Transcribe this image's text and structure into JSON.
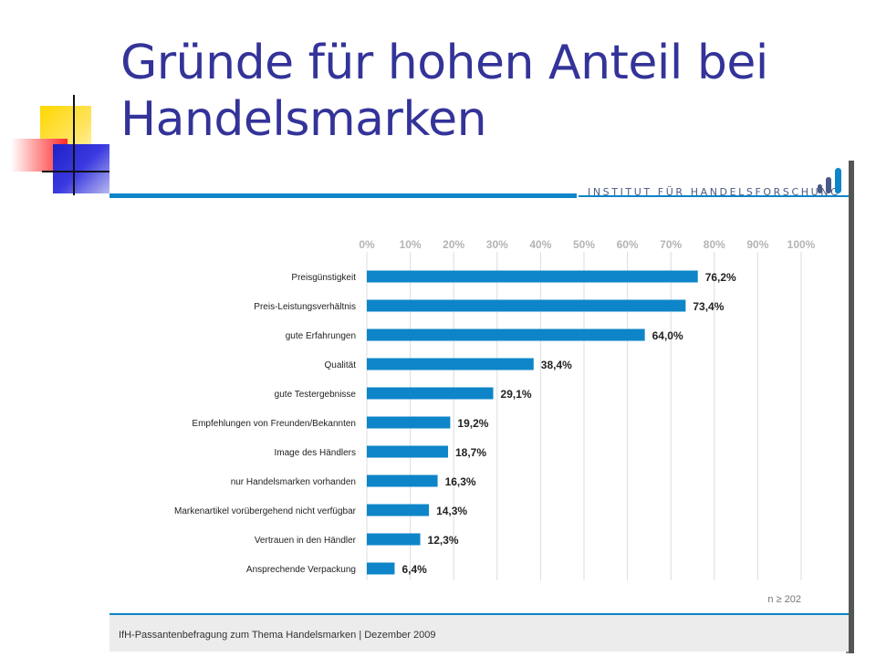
{
  "slide": {
    "title": "Gründe für hohen Anteil bei Handelsmarken"
  },
  "institute": {
    "name": "INSTITUT FÜR HANDELSFORSCHUNG"
  },
  "footer": {
    "text": "IfH-Passantenbefragung zum Thema Handelsmarken | Dezember 2009"
  },
  "colors": {
    "bar": "#0d85c8",
    "title": "#333399",
    "tick": "#b4b4b4"
  },
  "chart_data": {
    "type": "bar",
    "orientation": "horizontal",
    "categories": [
      "Preisgünstigkeit",
      "Preis-Leistungsverhältnis",
      "gute Erfahrungen",
      "Qualität",
      "gute Testergebnisse",
      "Empfehlungen von Freunden/Bekannten",
      "Image des Händlers",
      "nur Handelsmarken vorhanden",
      "Markenartikel vorübergehend nicht verfügbar",
      "Vertrauen in den Händler",
      "Ansprechende Verpackung"
    ],
    "values": [
      76.2,
      73.4,
      64.0,
      38.4,
      29.1,
      19.2,
      18.7,
      16.3,
      14.3,
      12.3,
      6.4
    ],
    "value_labels": [
      "76,2%",
      "73,4%",
      "64,0%",
      "38,4%",
      "29,1%",
      "19,2%",
      "18,7%",
      "16,3%",
      "14,3%",
      "12,3%",
      "6,4%"
    ],
    "xlim": [
      0,
      100
    ],
    "x_ticks": [
      0,
      10,
      20,
      30,
      40,
      50,
      60,
      70,
      80,
      90,
      100
    ],
    "x_tick_labels": [
      "0%",
      "10%",
      "20%",
      "30%",
      "40%",
      "50%",
      "60%",
      "70%",
      "80%",
      "90%",
      "100%"
    ],
    "grid": true,
    "axis_position": "top",
    "note": "n ≥ 202"
  }
}
